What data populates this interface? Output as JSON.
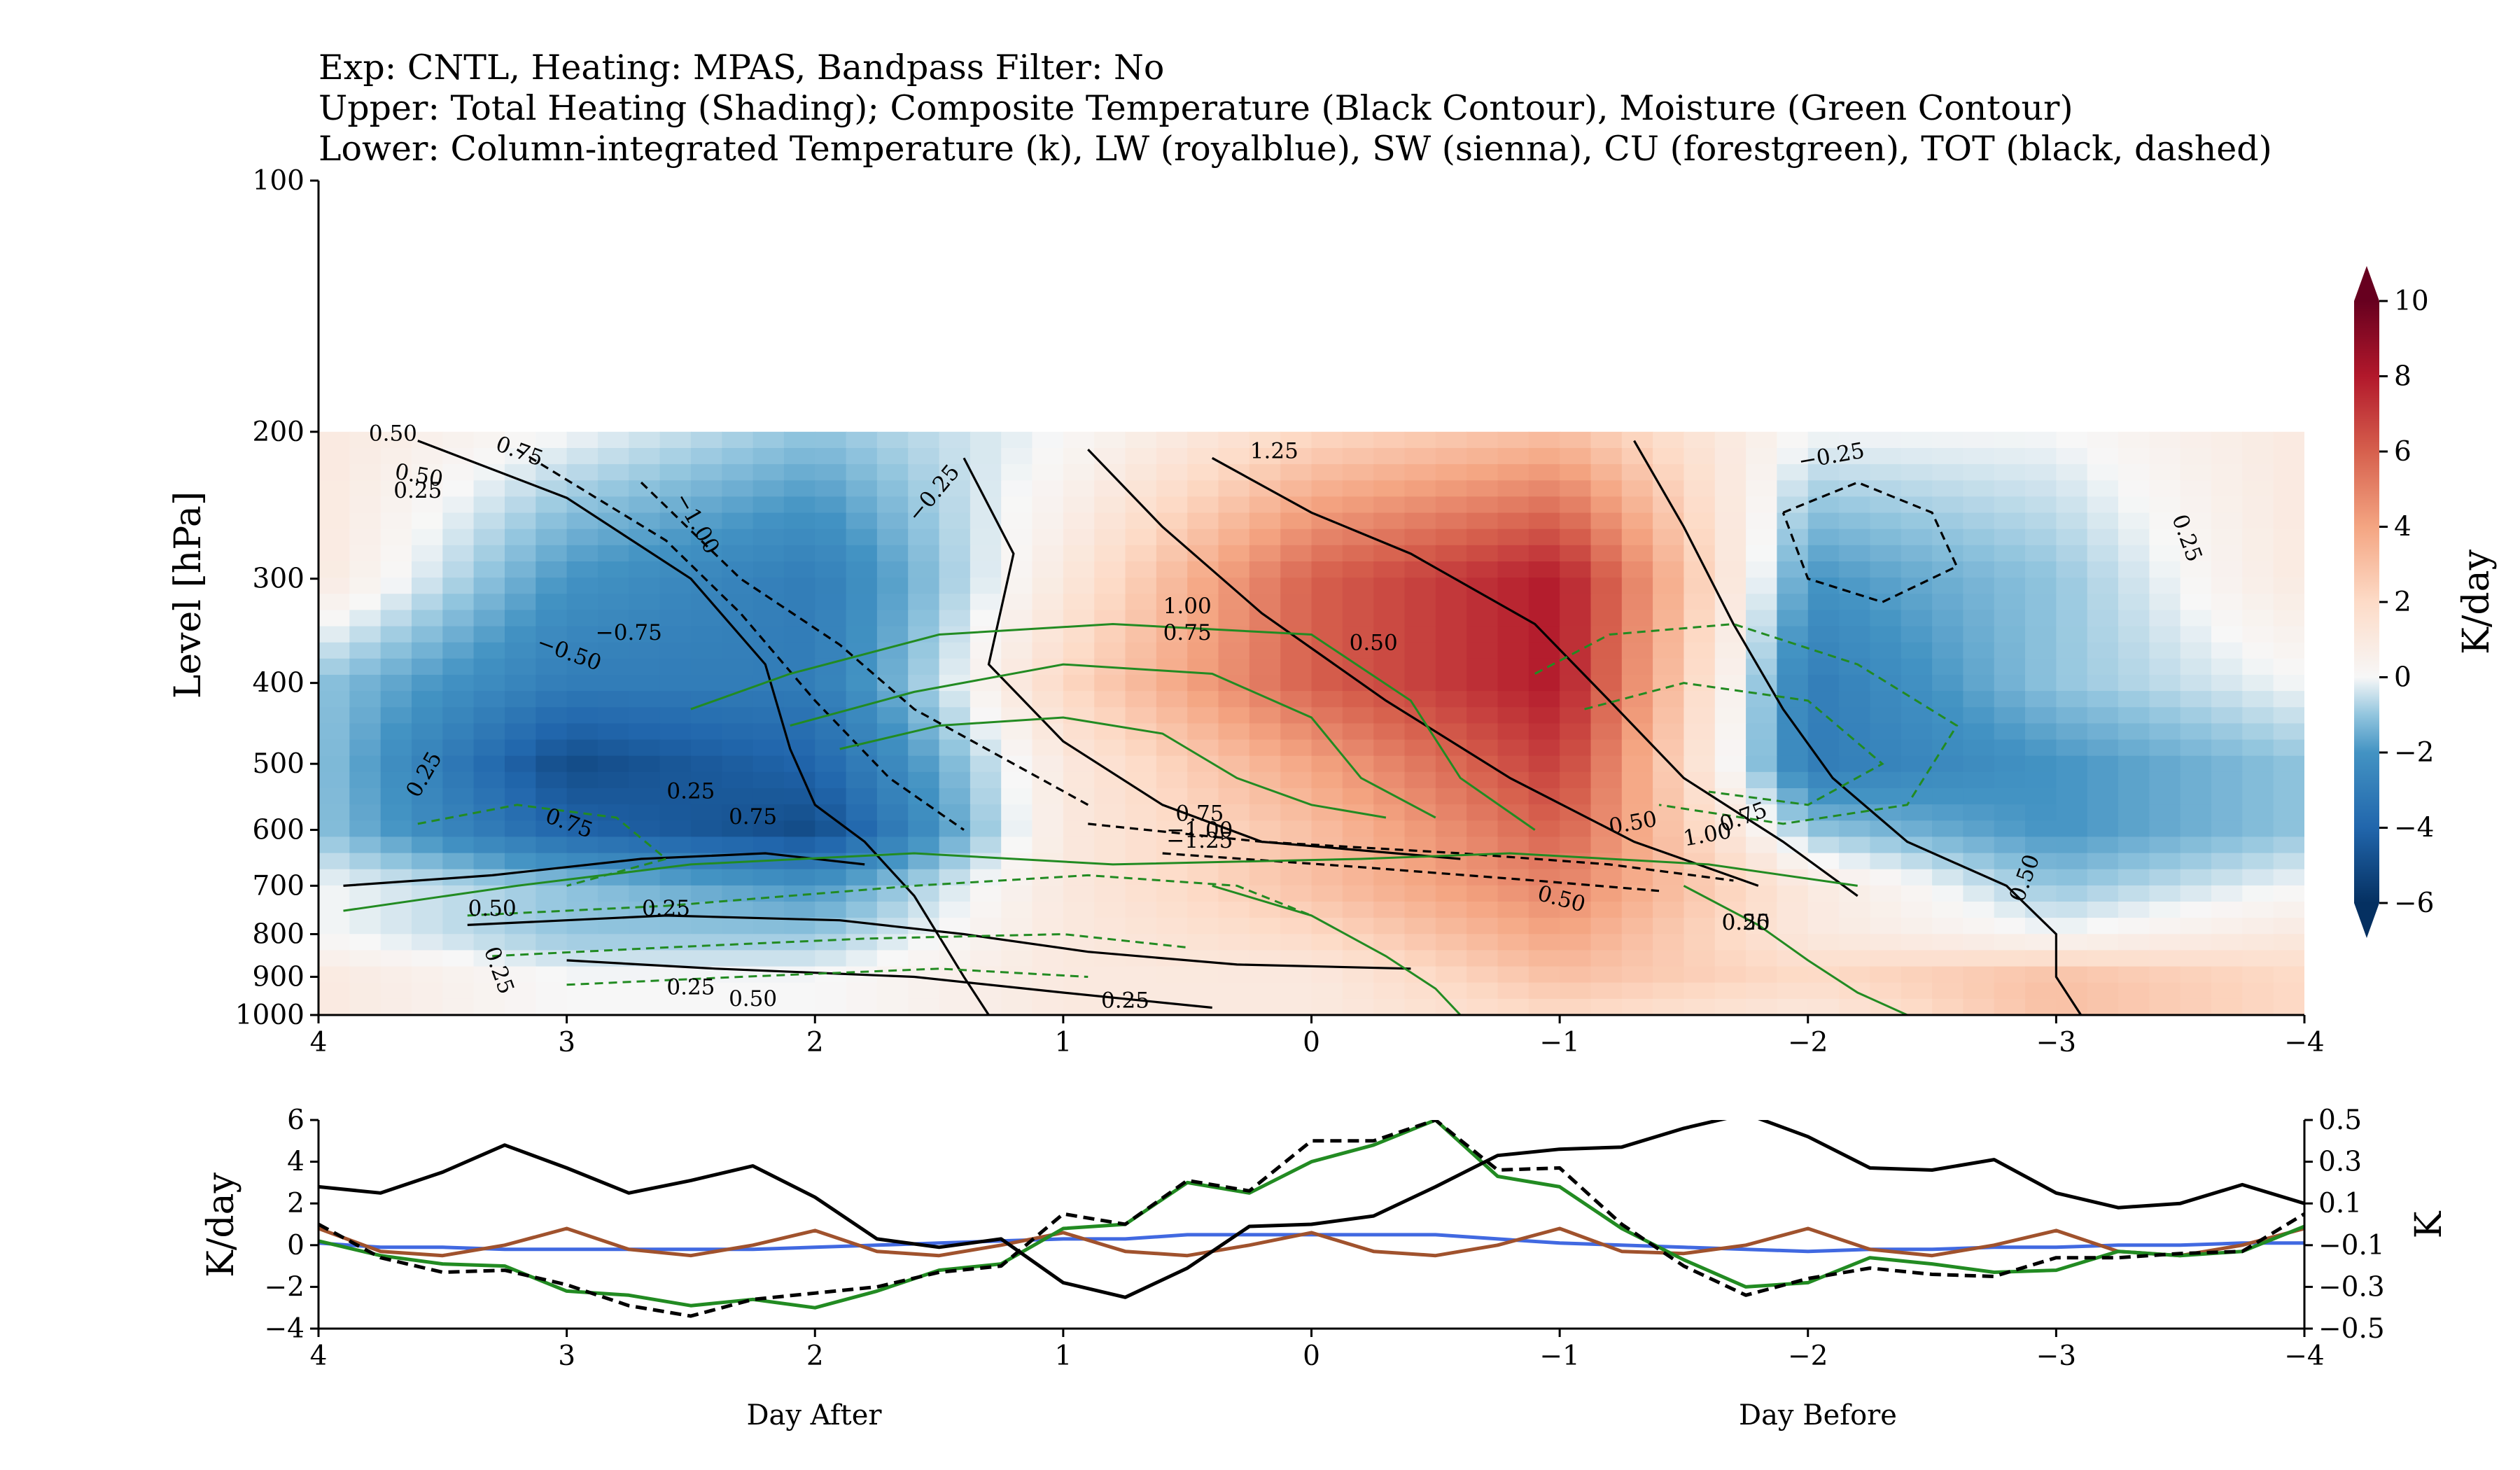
{
  "title_lines": [
    "Exp: CNTL, Heating: MPAS, Bandpass Filter: No",
    "Upper: Total Heating (Shading); Composite Temperature (Black Contour), Moisture (Green Contour)",
    "Lower: Column-integrated Temperature (k), LW (royalblue), SW (sienna), CU (forestgreen), TOT (black, dashed)"
  ],
  "upper": {
    "ylabel": "Level [hPa]",
    "yticks": [
      "100",
      "200",
      "300",
      "400",
      "500",
      "600",
      "700",
      "800",
      "900",
      "1000"
    ],
    "xticks": [
      "4",
      "3",
      "2",
      "1",
      "0",
      "−1",
      "−2",
      "−3",
      "−4"
    ],
    "colorbar": {
      "label": "K/day",
      "ticks": [
        "10",
        "8",
        "6",
        "4",
        "2",
        "0",
        "−2",
        "−4",
        "−6"
      ],
      "range": [
        -6,
        10
      ],
      "cmap": "RdBu_r",
      "extend": "both"
    },
    "contour_labels": {
      "temperature": [
        "0.50",
        "0.75",
        "0.50",
        "0.25",
        "−1.00",
        "−0.25",
        "1.25",
        "−0.25",
        "0.25",
        "1.00",
        "0.75",
        "0.50",
        "−0.75",
        "−0.50",
        "0.25",
        "0.75",
        "0.75",
        "0.75",
        "−1.00",
        "−1.25",
        "0.50",
        "1.00",
        "0.75",
        "0.50",
        "0.25",
        "0.25",
        "0.50",
        "0.25",
        "0.25",
        "0.50",
        "0.25",
        "0.50",
        "0.50",
        "0.25"
      ]
    }
  },
  "lower": {
    "ylabel_left": "K/day",
    "ylabel_right": "K",
    "yticks_left": [
      "6",
      "4",
      "2",
      "0",
      "−2",
      "−4"
    ],
    "yticks_right": [
      "0.5",
      "0.3",
      "0.1",
      "−0.1",
      "−0.3",
      "−0.5"
    ],
    "xticks": [
      "4",
      "3",
      "2",
      "1",
      "0",
      "−1",
      "−2",
      "−3",
      "−4"
    ]
  },
  "footer": {
    "left": "Day After",
    "right": "Day Before"
  },
  "colors": {
    "lw": "#4169e1",
    "sw": "#a0522d",
    "cu": "#228b22",
    "tot": "#000000",
    "temp": "#000000"
  },
  "chart_data": [
    {
      "type": "heatmap",
      "title": "Upper: Total Heating (Shading); Composite Temperature (Black Contour), Moisture (Green Contour)",
      "xlabel": "",
      "ylabel": "Level [hPa]",
      "xlim": [
        4,
        -4
      ],
      "ylim": [
        1000,
        100
      ],
      "yscale": "log",
      "x": [
        4,
        3,
        2,
        1,
        0,
        -1,
        -2,
        -3,
        -4
      ],
      "levels": [
        1000,
        900,
        800,
        700,
        600,
        500,
        400,
        300,
        200
      ],
      "values": [
        [
          1,
          0,
          0,
          1,
          1,
          2,
          1,
          3,
          2
        ],
        [
          1,
          0,
          0,
          1,
          1,
          3,
          2,
          3,
          2
        ],
        [
          0,
          -1,
          -1,
          1,
          2,
          4,
          1,
          0,
          1
        ],
        [
          0,
          -1,
          -2,
          1,
          3,
          5,
          1,
          -1,
          0
        ],
        [
          -1,
          -4,
          -5,
          1,
          3,
          6,
          -1,
          -2,
          -1
        ],
        [
          -1,
          -5,
          -4,
          1,
          4,
          7,
          -3,
          -2,
          -1
        ],
        [
          -1,
          -3,
          -3,
          2,
          6,
          8,
          -3,
          -1,
          0
        ],
        [
          1,
          -2,
          -3,
          1,
          6,
          8,
          -2,
          -1,
          1
        ],
        [
          1,
          0,
          -1,
          0,
          2,
          3,
          0,
          0,
          1
        ]
      ],
      "vmin": -6,
      "vmax": 10,
      "colorbar_label": "K/day"
    },
    {
      "type": "line",
      "xlabel": "",
      "ylabel": "K/day",
      "xlim": [
        4,
        -4
      ],
      "ylim": [
        -4,
        6
      ],
      "ylim_right": [
        -0.5,
        0.5
      ],
      "x": [
        4,
        3.75,
        3.5,
        3.25,
        3,
        2.75,
        2.5,
        2.25,
        2,
        1.75,
        1.5,
        1.25,
        1,
        0.75,
        0.5,
        0.25,
        0,
        -0.25,
        -0.5,
        -0.75,
        -1,
        -1.25,
        -1.5,
        -1.75,
        -2,
        -2.25,
        -2.5,
        -2.75,
        -3,
        -3.25,
        -3.5,
        -3.75,
        -4
      ],
      "series": [
        {
          "name": "LW (royalblue)",
          "axis": "left",
          "values": [
            0.1,
            -0.1,
            -0.1,
            -0.2,
            -0.2,
            -0.2,
            -0.2,
            -0.2,
            -0.1,
            0.0,
            0.1,
            0.2,
            0.3,
            0.3,
            0.5,
            0.5,
            0.5,
            0.5,
            0.5,
            0.3,
            0.1,
            0.0,
            -0.1,
            -0.2,
            -0.3,
            -0.2,
            -0.2,
            -0.1,
            -0.1,
            0.0,
            0.0,
            0.1,
            0.1
          ]
        },
        {
          "name": "SW (sienna)",
          "axis": "left",
          "values": [
            0.8,
            -0.3,
            -0.5,
            0.0,
            0.8,
            -0.2,
            -0.5,
            0.0,
            0.7,
            -0.3,
            -0.5,
            0.0,
            0.6,
            -0.3,
            -0.5,
            0.0,
            0.6,
            -0.3,
            -0.5,
            0.0,
            0.8,
            -0.3,
            -0.4,
            0.0,
            0.8,
            -0.2,
            -0.5,
            0.0,
            0.7,
            -0.3,
            -0.5,
            0.0,
            0.8
          ]
        },
        {
          "name": "CU (forestgreen)",
          "axis": "left",
          "values": [
            0.2,
            -0.5,
            -0.9,
            -1.0,
            -2.2,
            -2.4,
            -2.9,
            -2.6,
            -3.0,
            -2.2,
            -1.2,
            -0.9,
            0.8,
            1.0,
            3.0,
            2.5,
            4.0,
            4.8,
            6.0,
            3.3,
            2.8,
            0.8,
            -0.7,
            -2.0,
            -1.8,
            -0.6,
            -0.9,
            -1.3,
            -1.2,
            -0.3,
            -0.5,
            -0.3,
            0.9
          ]
        },
        {
          "name": "TOT (black, dashed)",
          "axis": "left",
          "values": [
            1.0,
            -0.6,
            -1.3,
            -1.2,
            -1.9,
            -2.9,
            -3.4,
            -2.6,
            -2.3,
            -2.0,
            -1.3,
            -1.0,
            1.5,
            1.0,
            3.1,
            2.6,
            5.0,
            5.0,
            6.0,
            3.6,
            3.7,
            1.0,
            -1.0,
            -2.4,
            -1.6,
            -1.1,
            -1.4,
            -1.5,
            -0.6,
            -0.6,
            -0.4,
            -0.3,
            1.5
          ]
        },
        {
          "name": "Column-integrated Temperature (k)",
          "axis": "right",
          "values": [
            0.18,
            0.15,
            0.25,
            0.38,
            0.27,
            0.15,
            0.21,
            0.28,
            0.13,
            -0.07,
            -0.11,
            -0.07,
            -0.28,
            -0.35,
            -0.21,
            -0.01,
            0.0,
            0.04,
            0.18,
            0.33,
            0.36,
            0.37,
            0.46,
            0.53,
            0.42,
            0.27,
            0.26,
            0.31,
            0.15,
            0.08,
            0.1,
            0.19,
            0.1
          ]
        }
      ]
    }
  ]
}
